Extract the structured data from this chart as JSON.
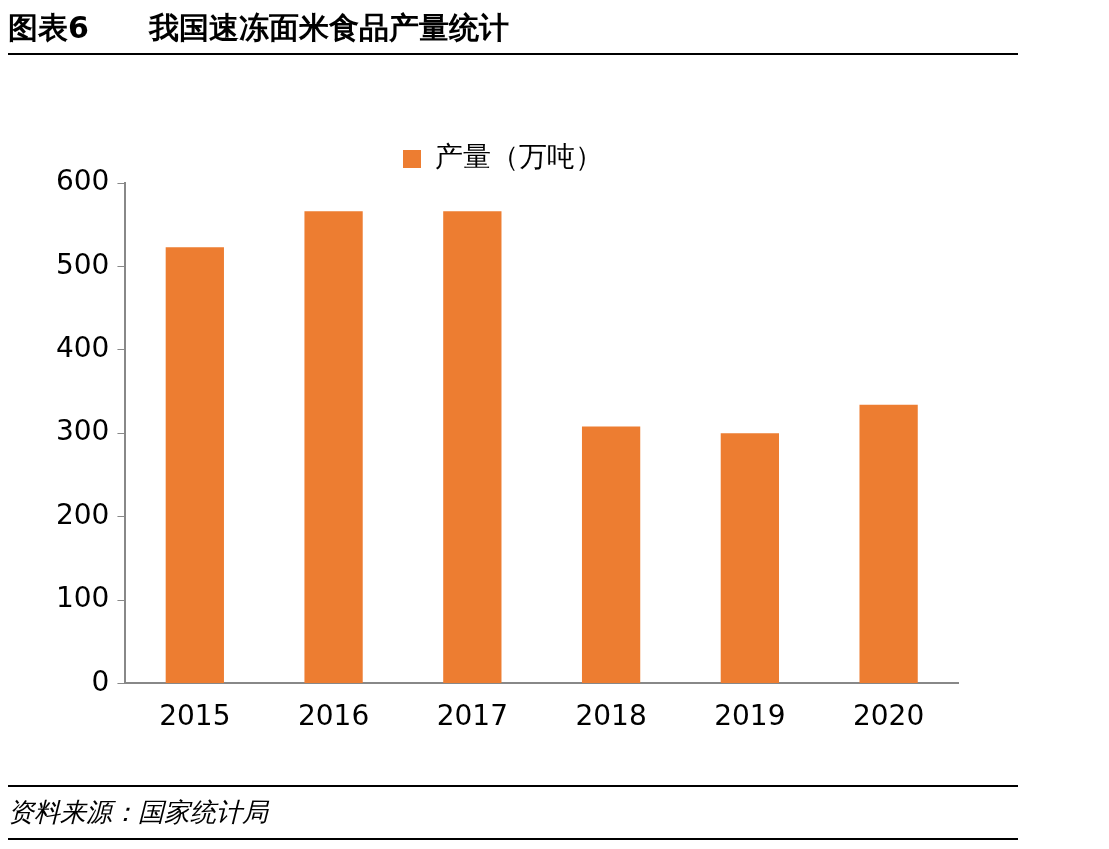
{
  "chart_data": {
    "type": "bar",
    "title": "图表6　　我国速冻面米食品产量统计",
    "categories": [
      "2015",
      "2016",
      "2017",
      "2018",
      "2019",
      "2020"
    ],
    "series": [
      {
        "name": "产量（万吨）",
        "color": "#ed7d31",
        "values": [
          523,
          566,
          566,
          308,
          300,
          334
        ]
      }
    ],
    "ylim": [
      0,
      600
    ],
    "yticks": [
      0,
      100,
      200,
      300,
      400,
      500,
      600
    ],
    "grid": false,
    "legend": "top",
    "annotations": [
      "资料来源：国家统计局"
    ]
  }
}
